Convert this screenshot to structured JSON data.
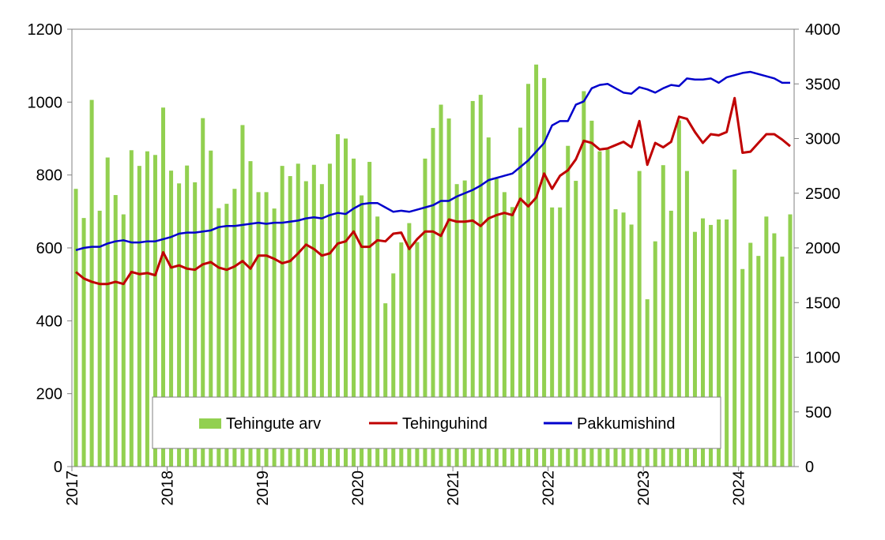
{
  "chart_data": {
    "type": "bar+line",
    "title": "",
    "xlabel": "",
    "ylabel_left": "",
    "ylabel_right": "",
    "x_start": "2017-01",
    "frequency": "monthly",
    "year_labels": [
      "2017",
      "2018",
      "2019",
      "2020",
      "2021",
      "2022",
      "2023",
      "2024"
    ],
    "y_left": {
      "min": 0,
      "max": 1200,
      "step": 200,
      "ticks": [
        "0",
        "200",
        "400",
        "600",
        "800",
        "1000",
        "1200"
      ]
    },
    "y_right": {
      "min": 0,
      "max": 4000,
      "step": 500,
      "ticks": [
        "0",
        "500",
        "1000",
        "1500",
        "2000",
        "2500",
        "3000",
        "3500",
        "4000"
      ]
    },
    "grid": false,
    "legend": {
      "position": "bottom-center-inside"
    },
    "series": [
      {
        "name": "Tehingute arv",
        "type": "bar",
        "axis": "left",
        "color": "#92d050",
        "values": [
          762,
          682,
          1006,
          702,
          848,
          745,
          692,
          868,
          825,
          865,
          855,
          985,
          812,
          777,
          826,
          780,
          956,
          867,
          709,
          721,
          762,
          937,
          838,
          753,
          753,
          708,
          825,
          797,
          831,
          783,
          828,
          775,
          831,
          912,
          900,
          845,
          744,
          836,
          686,
          448,
          530,
          615,
          668,
          616,
          845,
          929,
          993,
          955,
          775,
          785,
          1003,
          1020,
          903,
          790,
          753,
          712,
          930,
          1050,
          1103,
          1066,
          711,
          711,
          880,
          784,
          1030,
          949,
          865,
          870,
          706,
          697,
          664,
          811,
          459,
          618,
          827,
          702,
          950,
          811,
          644,
          681,
          663,
          678,
          678,
          815,
          542,
          614,
          578,
          686,
          640,
          576,
          692
        ]
      },
      {
        "name": "Tehinguhind",
        "type": "line",
        "axis": "right",
        "color": "#c00000",
        "values": [
          1780,
          1720,
          1690,
          1670,
          1670,
          1690,
          1670,
          1780,
          1760,
          1770,
          1750,
          1960,
          1820,
          1840,
          1810,
          1800,
          1850,
          1870,
          1820,
          1800,
          1830,
          1880,
          1810,
          1930,
          1930,
          1900,
          1860,
          1880,
          1950,
          2030,
          1990,
          1930,
          1950,
          2040,
          2060,
          2150,
          2010,
          2010,
          2070,
          2060,
          2130,
          2140,
          1990,
          2080,
          2150,
          2150,
          2110,
          2260,
          2240,
          2240,
          2250,
          2200,
          2270,
          2300,
          2320,
          2300,
          2450,
          2380,
          2460,
          2680,
          2540,
          2660,
          2710,
          2810,
          2980,
          2960,
          2900,
          2910,
          2940,
          2970,
          2920,
          3160,
          2760,
          2960,
          2920,
          2970,
          3200,
          3180,
          3060,
          2960,
          3040,
          3030,
          3060,
          3370,
          2870,
          2880,
          2960,
          3040,
          3040,
          2990,
          2930
        ]
      },
      {
        "name": "Pakkumishind",
        "type": "line",
        "axis": "right",
        "color": "#0000cc",
        "values": [
          1980,
          2000,
          2010,
          2010,
          2040,
          2060,
          2070,
          2050,
          2050,
          2060,
          2060,
          2080,
          2100,
          2130,
          2140,
          2140,
          2150,
          2160,
          2190,
          2200,
          2200,
          2210,
          2220,
          2230,
          2220,
          2230,
          2230,
          2240,
          2250,
          2270,
          2280,
          2270,
          2300,
          2320,
          2310,
          2360,
          2400,
          2410,
          2410,
          2370,
          2330,
          2340,
          2330,
          2350,
          2370,
          2390,
          2430,
          2430,
          2470,
          2500,
          2530,
          2570,
          2620,
          2640,
          2660,
          2680,
          2740,
          2800,
          2880,
          2960,
          3120,
          3160,
          3160,
          3310,
          3340,
          3460,
          3490,
          3500,
          3460,
          3420,
          3410,
          3470,
          3450,
          3420,
          3460,
          3490,
          3480,
          3550,
          3540,
          3540,
          3550,
          3510,
          3560,
          3580,
          3600,
          3610,
          3590,
          3570,
          3550,
          3510,
          3510
        ]
      }
    ]
  }
}
